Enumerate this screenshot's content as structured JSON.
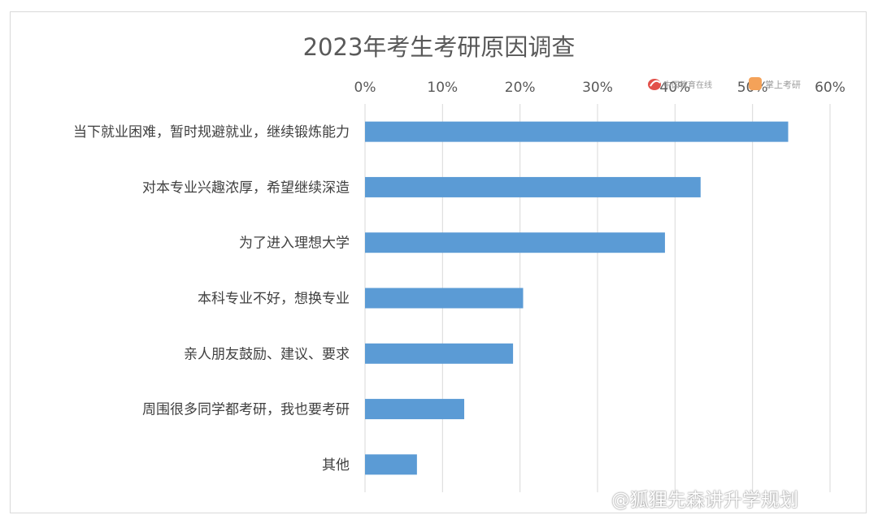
{
  "chart_data": {
    "type": "bar",
    "orientation": "horizontal",
    "title": "2023年考生考研原因调查",
    "categories": [
      "当下就业困难，暂时规避就业，继续锻炼能力",
      "对本专业兴趣浓厚，希望继续深造",
      "为了进入理想大学",
      "本科专业不好，想换专业",
      "亲人朋友鼓励、建议、要求",
      "周围很多同学都考研，我也要考研",
      "其他"
    ],
    "values": [
      54.6,
      43.3,
      38.7,
      20.4,
      19.1,
      12.8,
      6.7
    ],
    "unit": "%",
    "xlim": [
      0,
      60
    ],
    "x_ticks": [
      0,
      10,
      20,
      30,
      40,
      50,
      60
    ],
    "x_tick_labels": [
      "0%",
      "10%",
      "20%",
      "30%",
      "40%",
      "50%",
      "60%"
    ],
    "x_axis_position": "top",
    "grid": true,
    "legend": "none",
    "bar_color": "#5b9bd5"
  },
  "logos": {
    "logo_a_text": "中国教育在线",
    "logo_b_text": "掌上考研"
  },
  "watermark": "@狐狸先森讲升学规划"
}
